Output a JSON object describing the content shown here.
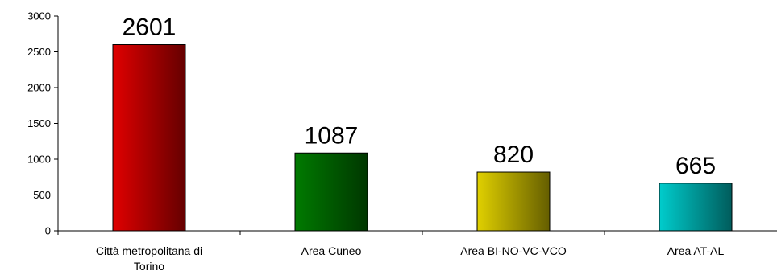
{
  "chart_data": {
    "type": "bar",
    "categories": [
      [
        "Città metropolitana di",
        "Torino"
      ],
      [
        "Area Cuneo"
      ],
      [
        "Area BI-NO-VC-VCO"
      ],
      [
        "Area AT-AL"
      ]
    ],
    "values": [
      2601,
      1087,
      820,
      665
    ],
    "colors": [
      "#e00000",
      "#007a00",
      "#e0d000",
      "#00cccc"
    ],
    "ylim": [
      0,
      3000
    ],
    "yticks": [
      0,
      500,
      1000,
      1500,
      2000,
      2500,
      3000
    ],
    "grid": false,
    "legend": "none"
  }
}
